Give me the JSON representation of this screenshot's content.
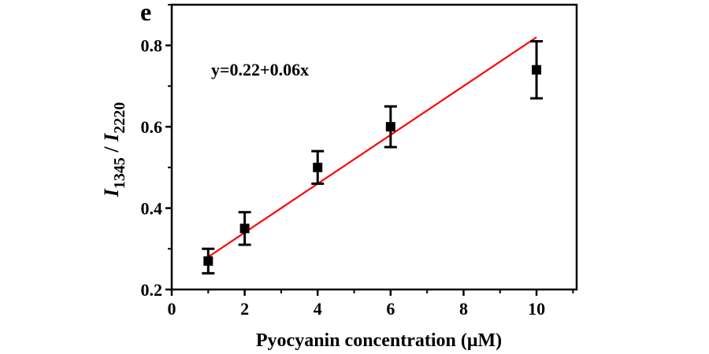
{
  "chart_data": {
    "type": "scatter",
    "panel_label": "e",
    "annotation": "y=0.22+0.06x",
    "xlabel": "Pyocyanin concentration (μM)",
    "ylabel": {
      "prefix_italic": "I",
      "sub1": "1345",
      "slash": " / ",
      "prefix2_italic": "I",
      "sub2": "2220"
    },
    "xlim": [
      0,
      11.1
    ],
    "ylim": [
      0.2,
      0.9
    ],
    "xticks": [
      0,
      2,
      4,
      6,
      8,
      10
    ],
    "xtick_labels": [
      "0",
      "2",
      "4",
      "6",
      "8",
      "10"
    ],
    "yticks": [
      0.2,
      0.4,
      0.6,
      0.8
    ],
    "ytick_labels": [
      "0.2",
      "0.4",
      "0.6",
      "0.8"
    ],
    "grid": false,
    "series": [
      {
        "points": [
          {
            "x": 1,
            "y": 0.27,
            "err": 0.03
          },
          {
            "x": 2,
            "y": 0.35,
            "err": 0.04
          },
          {
            "x": 4,
            "y": 0.5,
            "err": 0.04
          },
          {
            "x": 6,
            "y": 0.6,
            "err": 0.05
          },
          {
            "x": 10,
            "y": 0.74,
            "err": 0.07
          }
        ],
        "color": "#000000"
      }
    ],
    "fit": {
      "intercept": 0.22,
      "slope": 0.06,
      "x_range": [
        1,
        10
      ],
      "color": "#ff0000"
    }
  }
}
